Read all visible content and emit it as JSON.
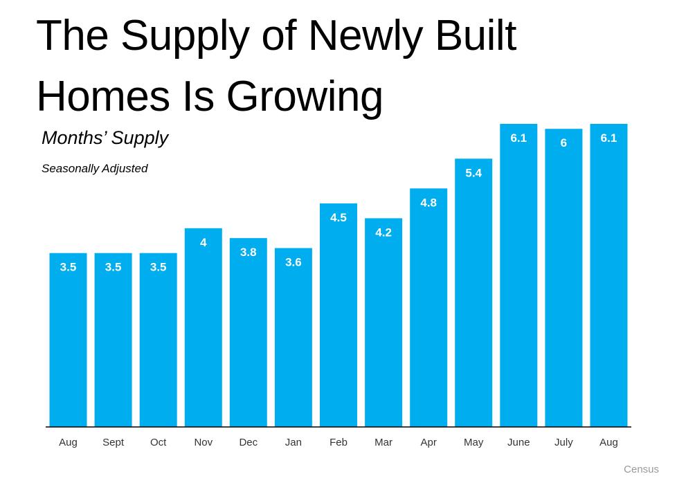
{
  "title": "The Supply of Newly Built Homes Is Growing",
  "subtitle": "Months’ Supply",
  "note": "Seasonally Adjusted",
  "source": "Census",
  "colors": {
    "bar": "#00AEEF",
    "axis": "#000000",
    "bar_label": "#FFFFFF"
  },
  "chart_data": {
    "type": "bar",
    "categories": [
      "Aug",
      "Sept",
      "Oct",
      "Nov",
      "Dec",
      "Jan",
      "Feb",
      "Mar",
      "Apr",
      "May",
      "June",
      "July",
      "Aug"
    ],
    "values": [
      3.5,
      3.5,
      3.5,
      4,
      3.8,
      3.6,
      4.5,
      4.2,
      4.8,
      5.4,
      6.1,
      6,
      6.1
    ],
    "data_labels": [
      "3.5",
      "3.5",
      "3.5",
      "4",
      "3.8",
      "3.6",
      "4.5",
      "4.2",
      "4.8",
      "5.4",
      "6.1",
      "6",
      "6.1"
    ],
    "title": "The Supply of Newly Built Homes Is Growing",
    "ylabel": "Months’ Supply",
    "xlabel": "",
    "ylim": [
      0,
      6.1
    ],
    "grid": false,
    "legend": "none"
  }
}
